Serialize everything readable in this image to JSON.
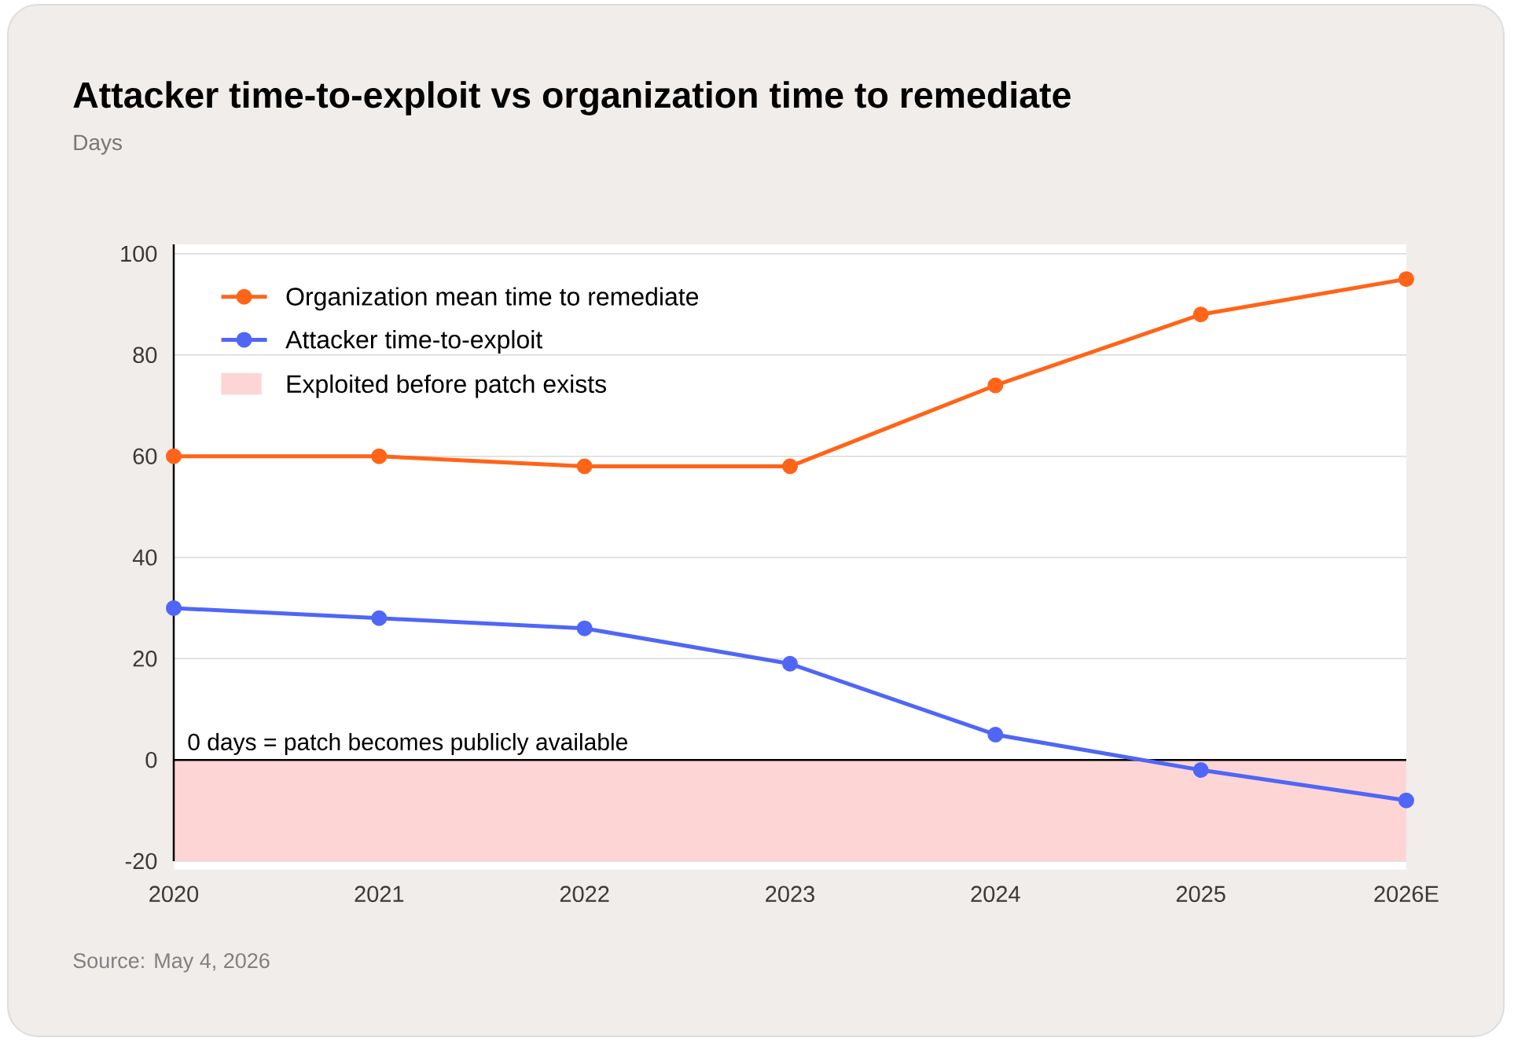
{
  "chart_data": {
    "type": "line",
    "title": "Attacker time-to-exploit vs organization time to remediate",
    "subtitle": "Days",
    "categories": [
      "2020",
      "2021",
      "2022",
      "2023",
      "2024",
      "2025",
      "2026E"
    ],
    "series": [
      {
        "name": "Organization mean time to remediate",
        "color": "#ff6418",
        "values": [
          60,
          60,
          58,
          58,
          74,
          88,
          95
        ]
      },
      {
        "name": "Attacker time-to-exploit",
        "color": "#4f66f6",
        "values": [
          30,
          28,
          26,
          19,
          5,
          -2,
          -8
        ]
      }
    ],
    "ylim": [
      -20,
      100
    ],
    "yticks": [
      -20,
      0,
      20,
      40,
      60,
      80,
      100
    ],
    "grid": "y",
    "legend": "top left",
    "marker": "circle",
    "line_style": "solid",
    "ref_lines": [
      {
        "axis": "y",
        "value": 0,
        "label": "0 days = patch becomes publicly available",
        "color": "#000000"
      }
    ],
    "bands": [
      {
        "axis": "y",
        "from": -20,
        "to": 0,
        "label": "Exploited before patch exists",
        "color": "#fdd5d5"
      }
    ],
    "annotations": [
      "Source: May 4, 2026"
    ]
  }
}
